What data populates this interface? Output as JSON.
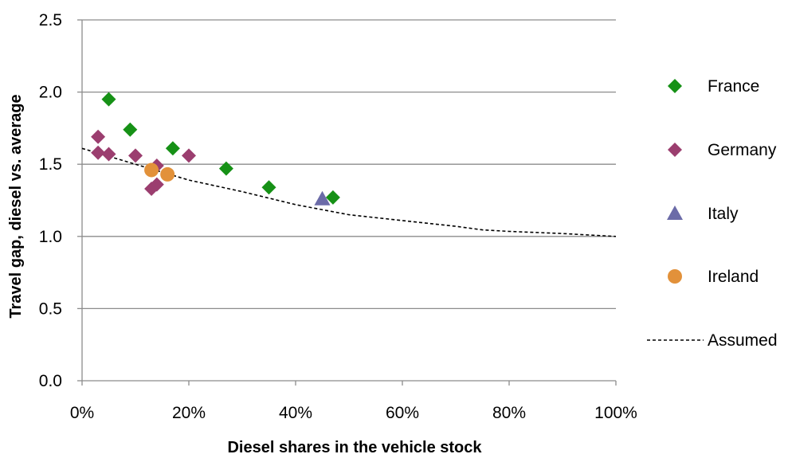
{
  "chart_data": {
    "type": "scatter",
    "title": "",
    "xlabel": "Diesel shares in the vehicle stock",
    "ylabel": "Travel gap, diesel vs. average",
    "xlim": [
      0,
      1
    ],
    "ylim": [
      0,
      2.5
    ],
    "x_ticks": [
      {
        "value": 0,
        "label": "0%"
      },
      {
        "value": 0.2,
        "label": "20%"
      },
      {
        "value": 0.4,
        "label": "40%"
      },
      {
        "value": 0.6,
        "label": "60%"
      },
      {
        "value": 0.8,
        "label": "80%"
      },
      {
        "value": 1.0,
        "label": "100%"
      }
    ],
    "y_ticks": [
      {
        "value": 0,
        "label": "0.0"
      },
      {
        "value": 0.5,
        "label": "0.5"
      },
      {
        "value": 1.0,
        "label": "1.0"
      },
      {
        "value": 1.5,
        "label": "1.5"
      },
      {
        "value": 2.0,
        "label": "2.0"
      },
      {
        "value": 2.5,
        "label": "2.5"
      }
    ],
    "grid": "horizontal",
    "legend_position": "right",
    "series": [
      {
        "name": "France",
        "marker": "diamond",
        "color": "#169116",
        "points": [
          [
            0.05,
            1.95
          ],
          [
            0.09,
            1.74
          ],
          [
            0.17,
            1.61
          ],
          [
            0.27,
            1.47
          ],
          [
            0.35,
            1.34
          ],
          [
            0.47,
            1.27
          ]
        ]
      },
      {
        "name": "Germany",
        "marker": "diamond",
        "color": "#9b3e6f",
        "points": [
          [
            0.03,
            1.69
          ],
          [
            0.03,
            1.58
          ],
          [
            0.05,
            1.57
          ],
          [
            0.1,
            1.56
          ],
          [
            0.14,
            1.49
          ],
          [
            0.2,
            1.56
          ],
          [
            0.13,
            1.33
          ],
          [
            0.14,
            1.36
          ]
        ]
      },
      {
        "name": "Italy",
        "marker": "triangle",
        "color": "#6b6ba8",
        "points": [
          [
            0.45,
            1.26
          ]
        ]
      },
      {
        "name": "Ireland",
        "marker": "circle",
        "color": "#e2913a",
        "points": [
          [
            0.13,
            1.46
          ],
          [
            0.16,
            1.43
          ]
        ]
      },
      {
        "name": "Assumed",
        "marker": "dashed-line",
        "color": "#000000",
        "points": [
          [
            0,
            1.61
          ],
          [
            0.1,
            1.5
          ],
          [
            0.2,
            1.39
          ],
          [
            0.3,
            1.31
          ],
          [
            0.4,
            1.22
          ],
          [
            0.5,
            1.15
          ],
          [
            0.6,
            1.11
          ],
          [
            0.7,
            1.07
          ],
          [
            0.75,
            1.045
          ],
          [
            0.8,
            1.035
          ],
          [
            0.9,
            1.02
          ],
          [
            1.0,
            1.0
          ]
        ]
      }
    ]
  }
}
